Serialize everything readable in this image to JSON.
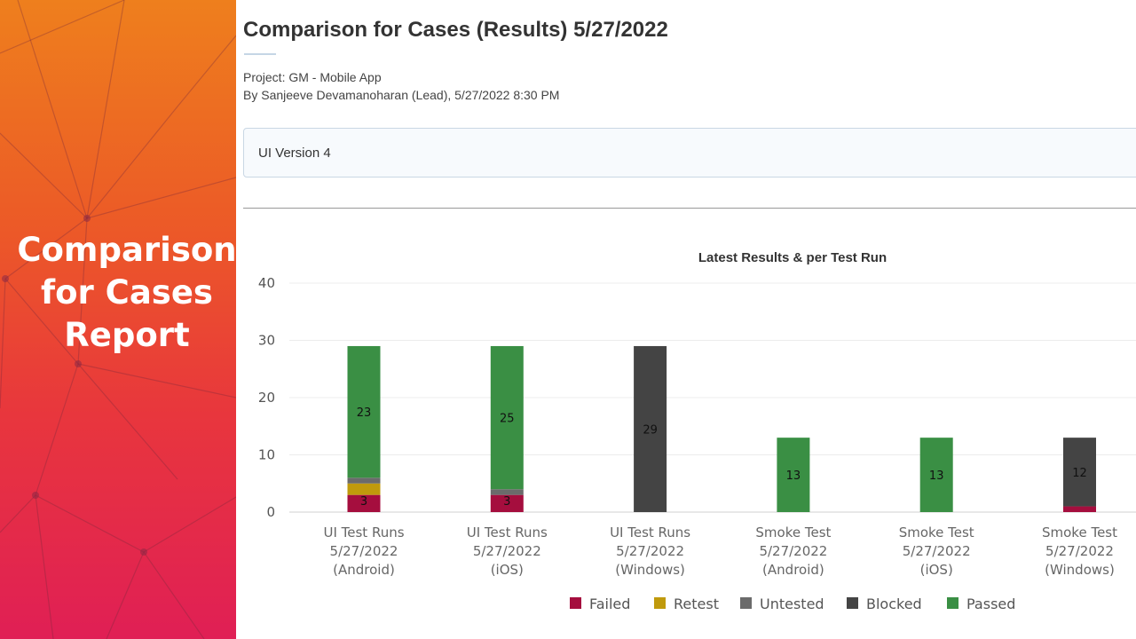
{
  "side_panel": {
    "title_lines": [
      "Comparison",
      "for Cases",
      "Report"
    ]
  },
  "report": {
    "title": "Comparison for Cases (Results) 5/27/2022",
    "project": "Project: GM - Mobile App",
    "by": "By Sanjeeve Devamanoharan (Lead), 5/27/2022 8:30 PM",
    "version": "UI Version 4"
  },
  "colors": {
    "failed": "#a50e3e",
    "retest": "#c09a0c",
    "untested": "#6b6b6b",
    "blocked": "#444444",
    "passed": "#3a8f44",
    "side_gradient_top": "#ee7f1d",
    "side_gradient_bottom": "#e01f55"
  },
  "chart_data": {
    "type": "bar",
    "stacked": true,
    "title": "Latest Results & per Test Run",
    "ylim": [
      0,
      40
    ],
    "yticks": [
      0,
      10,
      20,
      30,
      40
    ],
    "grid": true,
    "legend_position": "bottom",
    "categories": [
      [
        "UI Test Runs",
        "5/27/2022",
        "(Android)"
      ],
      [
        "UI Test Runs",
        "5/27/2022",
        "(iOS)"
      ],
      [
        "UI Test Runs",
        "5/27/2022",
        "(Windows)"
      ],
      [
        "Smoke Test",
        "5/27/2022",
        "(Android)"
      ],
      [
        "Smoke Test",
        "5/27/2022",
        "(iOS)"
      ],
      [
        "Smoke Test",
        "5/27/2022",
        "(Windows)"
      ]
    ],
    "series": [
      {
        "name": "Failed",
        "color": "#a50e3e",
        "values": [
          3,
          3,
          0,
          0,
          0,
          1
        ],
        "labels": [
          "3",
          "3",
          "",
          "",
          "",
          ""
        ]
      },
      {
        "name": "Retest",
        "color": "#c09a0c",
        "values": [
          2,
          0,
          0,
          0,
          0,
          0
        ],
        "labels": [
          "",
          "",
          "",
          "",
          "",
          ""
        ]
      },
      {
        "name": "Untested",
        "color": "#6b6b6b",
        "values": [
          1,
          1,
          0,
          0,
          0,
          0
        ],
        "labels": [
          "",
          "",
          "",
          "",
          "",
          ""
        ]
      },
      {
        "name": "Blocked",
        "color": "#444444",
        "values": [
          0,
          0,
          29,
          0,
          0,
          12
        ],
        "labels": [
          "",
          "",
          "29",
          "",
          "",
          "12"
        ]
      },
      {
        "name": "Passed",
        "color": "#3a8f44",
        "values": [
          23,
          25,
          0,
          13,
          13,
          0
        ],
        "labels": [
          "23",
          "25",
          "",
          "13",
          "13",
          ""
        ]
      }
    ]
  }
}
